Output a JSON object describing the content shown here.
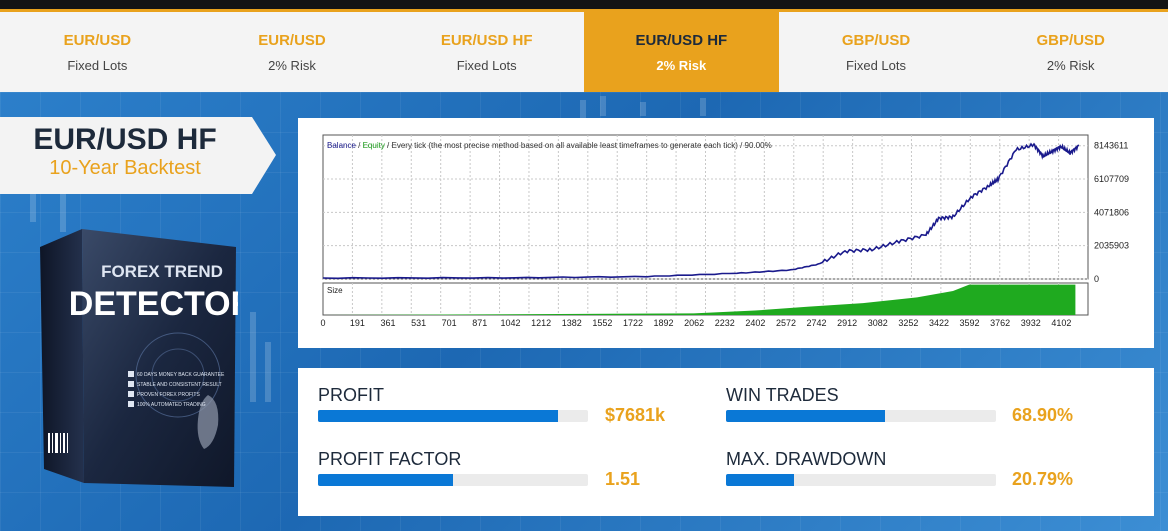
{
  "tabs": [
    {
      "title": "EUR/USD",
      "subtitle": "Fixed Lots",
      "active": false
    },
    {
      "title": "EUR/USD",
      "subtitle": "2% Risk",
      "active": false
    },
    {
      "title": "EUR/USD HF",
      "subtitle": "Fixed Lots",
      "active": false
    },
    {
      "title": "EUR/USD HF",
      "subtitle": "2% Risk",
      "active": true
    },
    {
      "title": "GBP/USD",
      "subtitle": "Fixed Lots",
      "active": false
    },
    {
      "title": "GBP/USD",
      "subtitle": "2% Risk",
      "active": false
    }
  ],
  "ribbon": {
    "title": "EUR/USD HF",
    "subtitle": "10-Year Backtest"
  },
  "product_box": {
    "line1": "FOREX TREND",
    "line2": "DETECTOR",
    "features": [
      "60 DAYS MONEY BACK GUARANTEE",
      "STABLE AND CONSISTENT RESULT",
      "PROVEN FOREX PROFITS",
      "100% AUTOMATED TRADING"
    ]
  },
  "chart_data": {
    "type": "line",
    "legend_parts": [
      {
        "text": "Balance",
        "color": "#1a1a8c"
      },
      {
        "text": " / ",
        "color": "#333333"
      },
      {
        "text": "Equity",
        "color": "#1a9c1a"
      },
      {
        "text": " / Every tick (the most precise method based on all available least timeframes to generate each tick) / 90.00%",
        "color": "#333333"
      }
    ],
    "y_ticks": [
      8143611,
      6107709,
      4071806,
      2035903,
      0
    ],
    "ylim": [
      0,
      8800000
    ],
    "x_ticks": [
      0,
      191,
      361,
      531,
      701,
      871,
      1042,
      1212,
      1382,
      1552,
      1722,
      1892,
      2062,
      2232,
      2402,
      2572,
      2742,
      2912,
      3082,
      3252,
      3422,
      3592,
      3762,
      3932,
      4102
    ],
    "xlim": [
      0,
      4250
    ],
    "balance_series": {
      "name": "Balance",
      "x": [
        0,
        1000,
        1800,
        2300,
        2600,
        2750,
        2900,
        3050,
        3200,
        3350,
        3420,
        3500,
        3600,
        3700,
        3750,
        3850,
        3950,
        4000,
        4050,
        4100,
        4150,
        4200
      ],
      "y": [
        60000,
        70000,
        150000,
        350000,
        550000,
        900000,
        1700000,
        1800000,
        2300000,
        2700000,
        3700000,
        3800000,
        5000000,
        5700000,
        6100000,
        7900000,
        8200000,
        7500000,
        7800000,
        8100000,
        7700000,
        8150000
      ]
    },
    "size_label": "Size",
    "size_series": {
      "name": "Size",
      "x": [
        0,
        2060,
        2400,
        2700,
        3000,
        3300,
        3500,
        3590,
        4180
      ],
      "y": [
        0,
        0.05,
        0.14,
        0.26,
        0.37,
        0.55,
        0.75,
        0.95,
        0.95
      ]
    },
    "colors": {
      "balance": "#1a1a8c",
      "size": "#1faa1f",
      "grid": "#c8c8c8"
    }
  },
  "stats": [
    {
      "label": "PROFIT",
      "value": "$7681k",
      "fill": 0.89
    },
    {
      "label": "WIN TRADES",
      "value": "68.90%",
      "fill": 0.59
    },
    {
      "label": "PROFIT FACTOR",
      "value": "1.51",
      "fill": 0.5
    },
    {
      "label": "MAX. DRAWDOWN",
      "value": "20.79%",
      "fill": 0.25
    }
  ],
  "colors": {
    "accent": "#e9a21d",
    "dark": "#1d2a3b",
    "bar": "#0a78d6",
    "background": "#1f6fb8"
  }
}
